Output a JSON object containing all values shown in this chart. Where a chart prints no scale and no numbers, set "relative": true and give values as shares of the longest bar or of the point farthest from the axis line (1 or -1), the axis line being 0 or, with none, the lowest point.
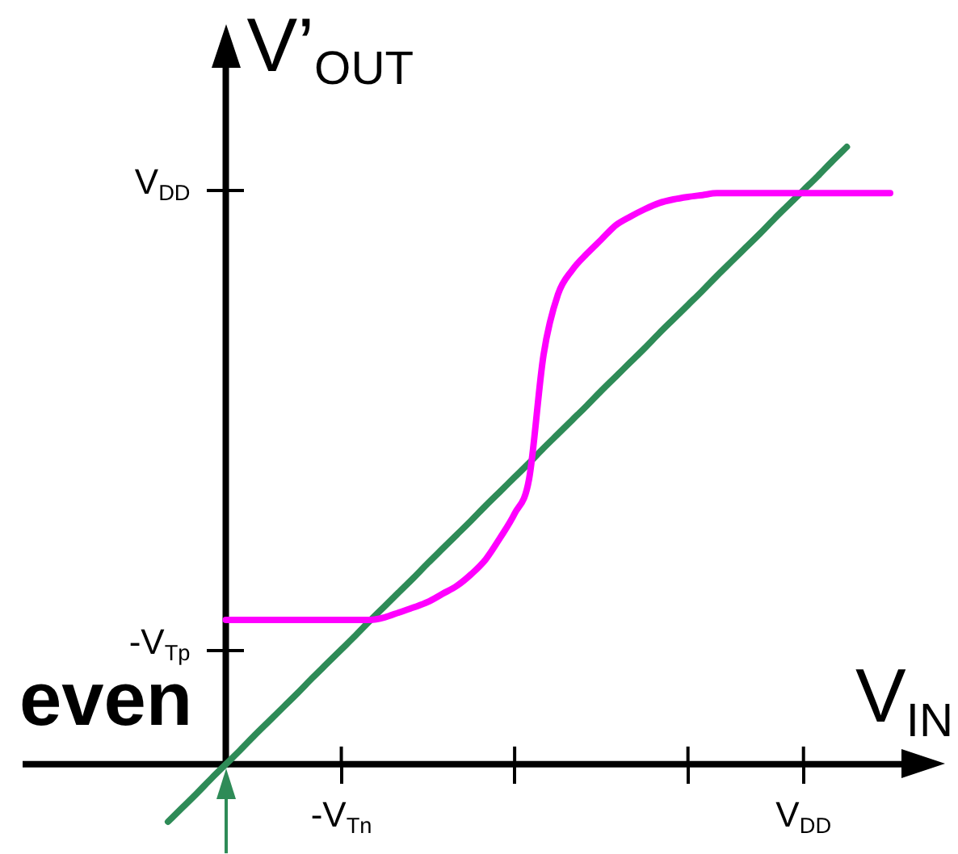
{
  "chart_data": {
    "type": "line",
    "relative": true,
    "xlabel": "V$_{IN}$",
    "ylabel": "V’$_{OUT}$",
    "annotations": [
      "V$_{DD}$",
      "-V$_{Tp}$",
      "even"
    ],
    "categories": [
      null,
      null,
      null,
      null,
      null,
      null,
      null,
      null,
      null,
      null,
      null,
      null,
      "-V$_{Tn}$",
      null,
      null,
      null,
      null,
      null,
      null,
      null,
      null,
      null,
      null,
      null,
      null,
      null,
      null,
      null,
      null,
      null,
      null,
      null,
      null,
      null,
      null,
      null,
      null,
      null,
      null,
      null,
      null,
      null,
      null,
      null,
      "V$_{DD}$",
      null,
      null,
      null,
      null,
      null,
      null
    ],
    "series": [
      {
        "color": "#ff00ff",
        "values": [
          null,
          null,
          null,
          null,
          0.234,
          0.234,
          0.234,
          0.234,
          0.234,
          0.234,
          0.234,
          0.234,
          0.234,
          0.234,
          0.234,
          0.238,
          0.246,
          0.254,
          0.263,
          0.276,
          0.289,
          0.308,
          0.332,
          0.367,
          0.406,
          0.462,
          0.663,
          0.761,
          0.801,
          0.827,
          0.85,
          0.873,
          0.887,
          0.899,
          0.909,
          0.915,
          0.919,
          0.922,
          0.925,
          0.925,
          0.925,
          0.925,
          0.925,
          0.925,
          0.925,
          0.925,
          0.925,
          0.925,
          0.925,
          0.925,
          0.925
        ]
      },
      {
        "color": "#2e8b57",
        "values": [
          -0.093,
          -0.07,
          -0.047,
          -0.023,
          0,
          0.023,
          0.047,
          0.07,
          0.093,
          0.116,
          0.14,
          0.163,
          0.186,
          0.209,
          0.233,
          0.256,
          0.279,
          0.302,
          0.326,
          0.349,
          0.372,
          0.395,
          0.419,
          0.442,
          0.465,
          0.488,
          0.512,
          0.535,
          0.558,
          0.581,
          0.605,
          0.628,
          0.651,
          0.674,
          0.698,
          0.721,
          0.744,
          0.767,
          0.791,
          0.814,
          0.837,
          0.86,
          0.884,
          0.907,
          0.93,
          0.953,
          0.977,
          1.0,
          null,
          null,
          null
        ]
      }
    ]
  }
}
